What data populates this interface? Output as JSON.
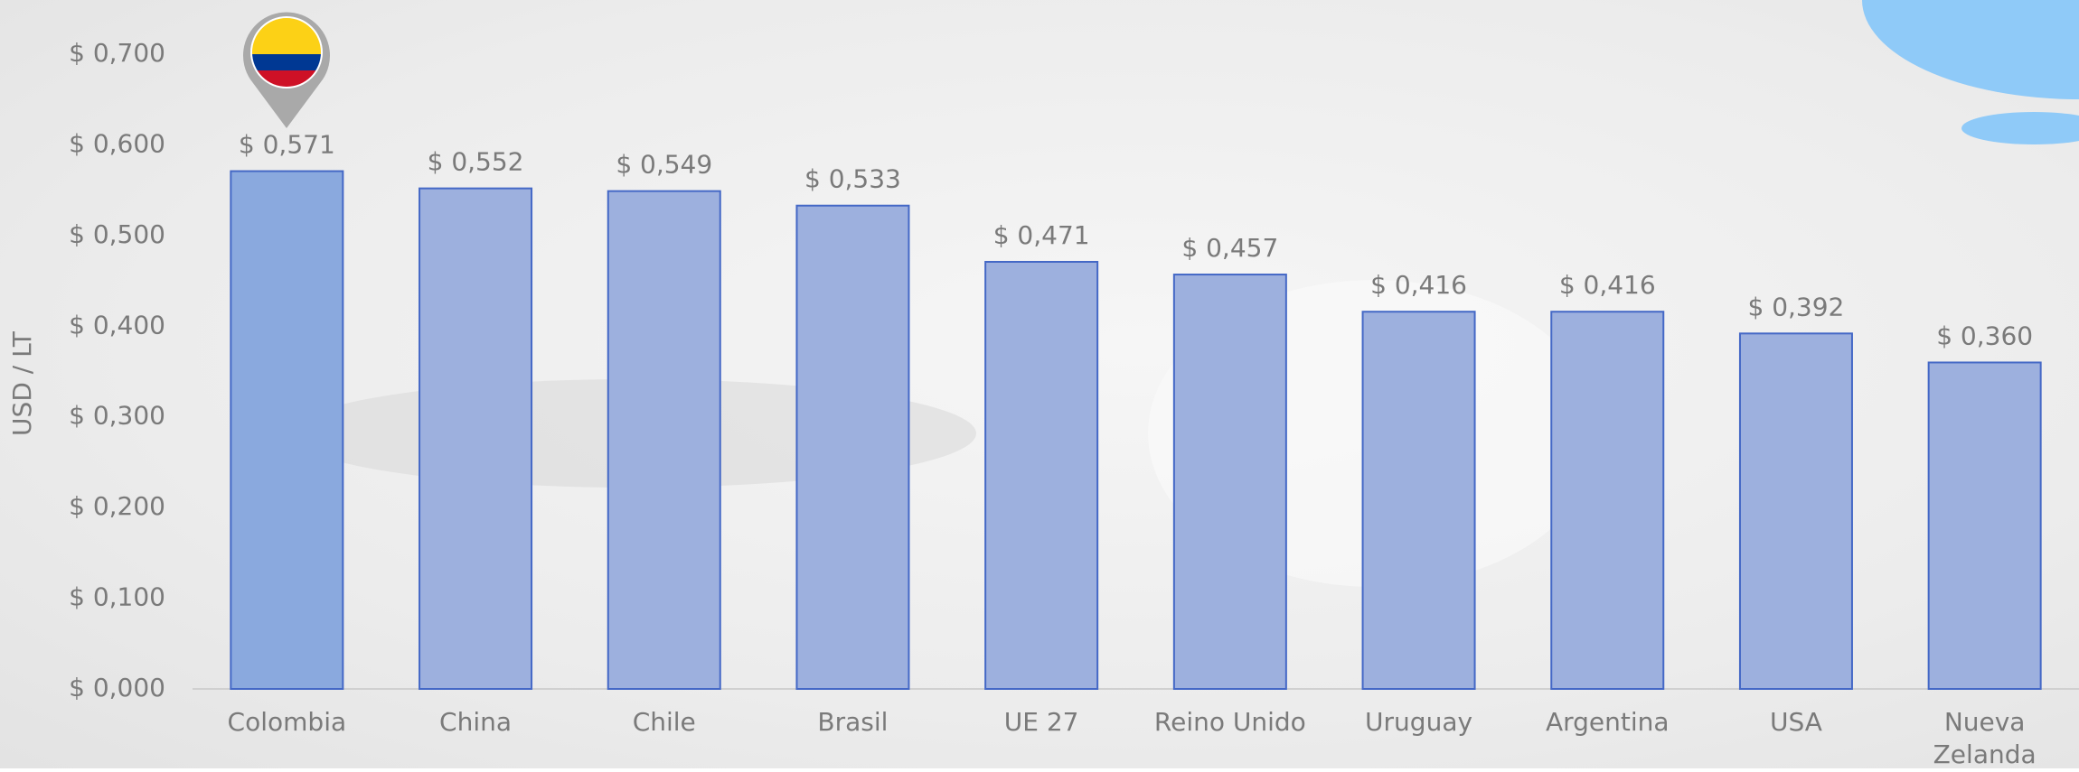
{
  "chart_data": {
    "type": "bar",
    "y_label": "USD / LT",
    "categories": [
      "Colombia",
      "China",
      "Chile",
      "Brasil",
      "UE 27",
      "Reino Unido",
      "Uruguay",
      "Argentina",
      "USA",
      "Nueva Zelanda"
    ],
    "values": [
      0.571,
      0.552,
      0.549,
      0.533,
      0.471,
      0.457,
      0.416,
      0.416,
      0.392,
      0.36
    ],
    "value_labels": [
      "$ 0,571",
      "$ 0,552",
      "$ 0,549",
      "$ 0,533",
      "$ 0,471",
      "$ 0,457",
      "$ 0,416",
      "$ 0,416",
      "$ 0,392",
      "$ 0,360"
    ],
    "colors": [
      "#8aa9de",
      "#9db0de",
      "#9db0de",
      "#9db0de",
      "#9db0de",
      "#9db0de",
      "#9db0de",
      "#9db0de",
      "#9db0de",
      "#9db0de"
    ],
    "ylim": [
      0,
      0.7
    ],
    "yticks": [
      {
        "value": 0,
        "label": "$ 0,000"
      },
      {
        "value": 0.1,
        "label": "$ 0,100"
      },
      {
        "value": 0.2,
        "label": "$ 0,200"
      },
      {
        "value": 0.3,
        "label": "$ 0,300"
      },
      {
        "value": 0.4,
        "label": "$ 0,400"
      },
      {
        "value": 0.5,
        "label": "$ 0,500"
      },
      {
        "value": 0.6,
        "label": "$ 0,600"
      },
      {
        "value": 0.7,
        "label": "$ 0,700"
      }
    ],
    "grid": false
  }
}
